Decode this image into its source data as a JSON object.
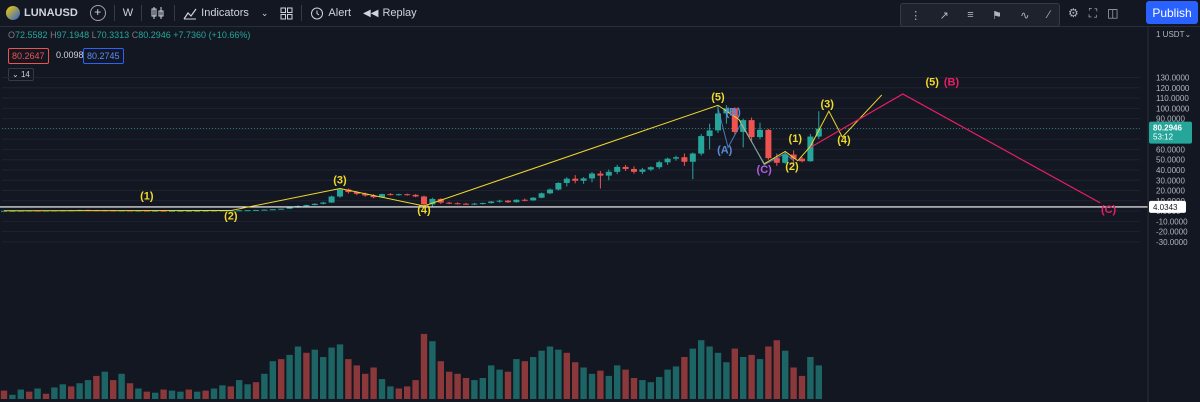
{
  "header": {
    "symbol": "LUNAUSD",
    "timeframe": "W",
    "indicators_label": "Indicators",
    "alert_label": "Alert",
    "replay_label": "Replay",
    "publish_label": "Publish"
  },
  "legend": {
    "o_key": "O",
    "o_val": "72.5582",
    "h_key": "H",
    "h_val": "97.1948",
    "l_key": "L",
    "l_val": "70.3313",
    "c_key": "C",
    "c_val": "80.2946",
    "change": "+7.7360 (+10.66%)",
    "bid": "80.2647",
    "spread": "0.0098",
    "ask": "80.2745",
    "collapse_count": "14"
  },
  "price_axis": {
    "currency": "USDT",
    "ticks": [
      "130.0000",
      "120.0000",
      "110.0000",
      "100.0000",
      "90.0000",
      "80.0000",
      "70.0000",
      "60.0000",
      "50.0000",
      "40.0000",
      "30.0000",
      "20.0000",
      "10.0000",
      "0.0000",
      "-10.0000",
      "-20.0000",
      "-30.0000"
    ],
    "last_price": "80.2946",
    "countdown": "53:12",
    "hline_price": "4.0343",
    "hline_value": 4.0343
  },
  "colors": {
    "up": "#26a69a",
    "down": "#ef5350",
    "wave": "#f0d92a",
    "corrective": "#e91e63",
    "abc_blue": "#5b8dd9",
    "abc_purple": "#b45be0"
  },
  "chart_data": {
    "type": "candlestick",
    "ylim": [
      -32,
      132
    ],
    "candles": [
      [
        0.2,
        0.3,
        0.1,
        0.3
      ],
      [
        0.3,
        0.4,
        0.2,
        0.3
      ],
      [
        0.3,
        0.4,
        0.2,
        0.4
      ],
      [
        0.4,
        0.5,
        0.3,
        0.5
      ],
      [
        0.5,
        0.6,
        0.3,
        0.4
      ],
      [
        0.4,
        0.5,
        0.3,
        0.5
      ],
      [
        0.5,
        0.6,
        0.4,
        0.6
      ],
      [
        0.6,
        0.8,
        0.5,
        0.7
      ],
      [
        0.7,
        0.9,
        0.6,
        0.8
      ],
      [
        0.8,
        1.2,
        0.7,
        1.1
      ],
      [
        1.1,
        1.3,
        0.8,
        0.9
      ],
      [
        0.9,
        1.1,
        0.7,
        0.8
      ],
      [
        0.8,
        0.9,
        0.6,
        0.7
      ],
      [
        0.7,
        0.8,
        0.5,
        0.6
      ],
      [
        0.6,
        0.7,
        0.5,
        0.6
      ],
      [
        0.6,
        0.7,
        0.4,
        0.5
      ],
      [
        0.5,
        0.6,
        0.4,
        0.5
      ],
      [
        0.5,
        0.5,
        0.3,
        0.4
      ],
      [
        0.4,
        0.5,
        0.3,
        0.4
      ],
      [
        0.4,
        0.4,
        0.3,
        0.3
      ],
      [
        0.3,
        0.4,
        0.2,
        0.3
      ],
      [
        0.3,
        0.4,
        0.2,
        0.3
      ],
      [
        0.3,
        0.4,
        0.2,
        0.3
      ],
      [
        0.3,
        0.4,
        0.2,
        0.35
      ],
      [
        0.35,
        0.5,
        0.3,
        0.45
      ],
      [
        0.45,
        0.6,
        0.4,
        0.55
      ],
      [
        0.55,
        0.7,
        0.5,
        0.6
      ],
      [
        0.6,
        0.8,
        0.5,
        0.7
      ],
      [
        0.7,
        0.9,
        0.6,
        0.8
      ],
      [
        0.8,
        1.0,
        0.7,
        0.9
      ],
      [
        0.9,
        1.2,
        0.8,
        1.1
      ],
      [
        1.1,
        1.5,
        1.0,
        1.4
      ],
      [
        1.4,
        1.9,
        1.2,
        1.8
      ],
      [
        1.8,
        2.5,
        1.6,
        2.3
      ],
      [
        2.3,
        4.0,
        2.1,
        3.5
      ],
      [
        3.5,
        5.5,
        3.1,
        4.8
      ],
      [
        4.8,
        6.2,
        4.4,
        5.9
      ],
      [
        5.9,
        7.6,
        5.5,
        7.1
      ],
      [
        7.1,
        9.0,
        6.5,
        8.3
      ],
      [
        8.3,
        15.0,
        8.0,
        14.2
      ],
      [
        14.2,
        22.5,
        13.0,
        21.0
      ],
      [
        21.0,
        22.0,
        17.0,
        18.5
      ],
      [
        18.5,
        19.5,
        15.5,
        16.8
      ],
      [
        16.8,
        18.0,
        14.0,
        15.2
      ],
      [
        15.2,
        16.5,
        12.5,
        13.5
      ],
      [
        13.5,
        17.0,
        12.8,
        16.5
      ],
      [
        16.5,
        17.5,
        15.2,
        16.0
      ],
      [
        16.0,
        17.0,
        15.0,
        16.4
      ],
      [
        16.4,
        17.0,
        15.0,
        15.8
      ],
      [
        15.8,
        16.5,
        13.5,
        14.2
      ],
      [
        14.2,
        15.0,
        5.0,
        6.5
      ],
      [
        6.5,
        13.0,
        4.5,
        11.8
      ],
      [
        11.8,
        12.5,
        7.0,
        8.2
      ],
      [
        8.2,
        9.0,
        6.8,
        7.6
      ],
      [
        7.6,
        8.5,
        6.5,
        7.2
      ],
      [
        7.2,
        8.0,
        6.0,
        6.6
      ],
      [
        6.6,
        8.0,
        6.0,
        7.3
      ],
      [
        7.3,
        8.3,
        6.5,
        7.8
      ],
      [
        7.8,
        9.8,
        7.2,
        9.3
      ],
      [
        9.3,
        11.0,
        8.3,
        10.1
      ],
      [
        10.1,
        10.8,
        8.0,
        8.6
      ],
      [
        8.6,
        11.5,
        8.2,
        11.0
      ],
      [
        11.0,
        12.2,
        9.5,
        10.4
      ],
      [
        10.4,
        13.6,
        10.0,
        13.0
      ],
      [
        13.0,
        18.0,
        12.5,
        17.3
      ],
      [
        17.3,
        22.0,
        16.5,
        21.0
      ],
      [
        21.0,
        28.0,
        20.0,
        27.4
      ],
      [
        27.4,
        33.0,
        24.0,
        31.5
      ],
      [
        31.5,
        35.0,
        27.0,
        29.5
      ],
      [
        29.5,
        33.0,
        26.5,
        31.8
      ],
      [
        31.8,
        38.0,
        28.0,
        36.5
      ],
      [
        36.5,
        39.0,
        22.0,
        34.5
      ],
      [
        34.5,
        40.5,
        30.0,
        38.2
      ],
      [
        38.2,
        45.0,
        36.0,
        43.0
      ],
      [
        43.0,
        45.0,
        39.0,
        41.0
      ],
      [
        41.0,
        43.5,
        36.5,
        38.2
      ],
      [
        38.2,
        42.0,
        36.0,
        40.5
      ],
      [
        40.5,
        43.5,
        39.0,
        42.7
      ],
      [
        42.7,
        49.0,
        41.0,
        47.5
      ],
      [
        47.5,
        52.0,
        45.0,
        51.0
      ],
      [
        51.0,
        54.0,
        49.0,
        52.4
      ],
      [
        52.4,
        56.0,
        44.0,
        48.0
      ],
      [
        48.0,
        57.0,
        31.0,
        56.0
      ],
      [
        56.0,
        75.0,
        54.0,
        73.0
      ],
      [
        73.0,
        85.0,
        60.0,
        78.5
      ],
      [
        78.5,
        103.0,
        76.0,
        95.0
      ],
      [
        95.0,
        103.0,
        85.0,
        100.0
      ],
      [
        100.0,
        101.0,
        75.0,
        77.0
      ],
      [
        77.0,
        90.0,
        62.0,
        88.5
      ],
      [
        88.5,
        91.0,
        67.0,
        72.0
      ],
      [
        72.0,
        86.0,
        70.0,
        79.0
      ],
      [
        79.0,
        80.0,
        50.0,
        51.5
      ],
      [
        51.5,
        56.0,
        44.0,
        47.0
      ],
      [
        47.0,
        58.5,
        46.0,
        55.0
      ],
      [
        55.0,
        59.0,
        47.0,
        51.0
      ],
      [
        51.0,
        52.5,
        47.5,
        48.5
      ],
      [
        48.5,
        75.0,
        48.0,
        72.5
      ],
      [
        72.5,
        97.2,
        70.3,
        80.3
      ]
    ],
    "volumes": [
      [
        8,
        "d"
      ],
      [
        4,
        "u"
      ],
      [
        9,
        "u"
      ],
      [
        7,
        "d"
      ],
      [
        10,
        "u"
      ],
      [
        5,
        "d"
      ],
      [
        11,
        "u"
      ],
      [
        14,
        "u"
      ],
      [
        12,
        "d"
      ],
      [
        15,
        "u"
      ],
      [
        18,
        "u"
      ],
      [
        22,
        "d"
      ],
      [
        26,
        "u"
      ],
      [
        18,
        "d"
      ],
      [
        24,
        "u"
      ],
      [
        15,
        "d"
      ],
      [
        10,
        "u"
      ],
      [
        7,
        "d"
      ],
      [
        6,
        "u"
      ],
      [
        9,
        "d"
      ],
      [
        8,
        "u"
      ],
      [
        7,
        "u"
      ],
      [
        9,
        "d"
      ],
      [
        7,
        "u"
      ],
      [
        8,
        "d"
      ],
      [
        10,
        "u"
      ],
      [
        13,
        "u"
      ],
      [
        12,
        "d"
      ],
      [
        18,
        "u"
      ],
      [
        14,
        "u"
      ],
      [
        16,
        "d"
      ],
      [
        24,
        "u"
      ],
      [
        36,
        "u"
      ],
      [
        38,
        "d"
      ],
      [
        42,
        "u"
      ],
      [
        50,
        "u"
      ],
      [
        44,
        "d"
      ],
      [
        47,
        "u"
      ],
      [
        40,
        "u"
      ],
      [
        49,
        "u"
      ],
      [
        52,
        "u"
      ],
      [
        38,
        "d"
      ],
      [
        32,
        "d"
      ],
      [
        24,
        "d"
      ],
      [
        30,
        "d"
      ],
      [
        19,
        "u"
      ],
      [
        12,
        "u"
      ],
      [
        10,
        "d"
      ],
      [
        12,
        "d"
      ],
      [
        18,
        "d"
      ],
      [
        62,
        "d"
      ],
      [
        55,
        "u"
      ],
      [
        36,
        "d"
      ],
      [
        26,
        "d"
      ],
      [
        24,
        "d"
      ],
      [
        20,
        "d"
      ],
      [
        18,
        "u"
      ],
      [
        20,
        "u"
      ],
      [
        32,
        "u"
      ],
      [
        28,
        "u"
      ],
      [
        26,
        "d"
      ],
      [
        38,
        "u"
      ],
      [
        36,
        "d"
      ],
      [
        40,
        "u"
      ],
      [
        46,
        "u"
      ],
      [
        50,
        "u"
      ],
      [
        47,
        "u"
      ],
      [
        44,
        "d"
      ],
      [
        35,
        "d"
      ],
      [
        30,
        "u"
      ],
      [
        24,
        "u"
      ],
      [
        27,
        "d"
      ],
      [
        22,
        "u"
      ],
      [
        32,
        "u"
      ],
      [
        28,
        "d"
      ],
      [
        20,
        "d"
      ],
      [
        18,
        "u"
      ],
      [
        16,
        "u"
      ],
      [
        21,
        "u"
      ],
      [
        28,
        "u"
      ],
      [
        31,
        "u"
      ],
      [
        40,
        "d"
      ],
      [
        48,
        "u"
      ],
      [
        56,
        "u"
      ],
      [
        50,
        "u"
      ],
      [
        44,
        "u"
      ],
      [
        35,
        "u"
      ],
      [
        48,
        "d"
      ],
      [
        40,
        "u"
      ],
      [
        42,
        "d"
      ],
      [
        38,
        "u"
      ],
      [
        50,
        "d"
      ],
      [
        56,
        "d"
      ],
      [
        46,
        "u"
      ],
      [
        30,
        "d"
      ],
      [
        22,
        "d"
      ],
      [
        40,
        "u"
      ],
      [
        32,
        "u"
      ]
    ],
    "wave_labels": [
      {
        "text": "(1)",
        "x": 17,
        "y": 11.5,
        "color": "wave"
      },
      {
        "text": "(2)",
        "x": 27,
        "y": -8,
        "color": "wave"
      },
      {
        "text": "(3)",
        "x": 40,
        "y": 27,
        "color": "wave"
      },
      {
        "text": "(4)",
        "x": 50,
        "y": -2.5,
        "color": "wave"
      },
      {
        "text": "(5)",
        "x": 85,
        "y": 107.5,
        "color": "wave"
      },
      {
        "text": "(B)",
        "x": 86.8,
        "y": 93,
        "color": "abc_blue"
      },
      {
        "text": "(A)",
        "x": 85.8,
        "y": 56,
        "color": "abc_blue"
      },
      {
        "text": "(C)",
        "x": 90.5,
        "y": 37,
        "color": "abc_purple"
      },
      {
        "text": "(1)",
        "x": 94.2,
        "y": 67,
        "color": "wave"
      },
      {
        "text": "(2)",
        "x": 93.8,
        "y": 40,
        "color": "wave"
      },
      {
        "text": "(3)",
        "x": 98,
        "y": 101,
        "color": "wave"
      },
      {
        "text": "(4)",
        "x": 100,
        "y": 66,
        "color": "wave"
      },
      {
        "text": "(5)",
        "x": 110.5,
        "y": 122,
        "color": "wave"
      },
      {
        "text": "(B)",
        "x": 112.8,
        "y": 122,
        "color": "corrective"
      },
      {
        "text": "(C)",
        "x": 131.5,
        "y": -2,
        "color": "corrective"
      }
    ],
    "wave_line": [
      [
        0,
        0.3
      ],
      [
        27,
        0.5
      ],
      [
        40,
        22
      ],
      [
        50,
        5
      ],
      [
        85,
        103
      ],
      [
        87.5,
        89
      ],
      [
        90.5,
        46
      ],
      [
        93,
        58
      ],
      [
        94.5,
        49
      ],
      [
        96,
        63
      ],
      [
        98.2,
        97.2
      ],
      [
        99.8,
        72
      ],
      [
        104.5,
        113
      ]
    ],
    "corrective_line": [
      [
        96,
        62
      ],
      [
        107,
        114
      ],
      [
        130.5,
        8
      ]
    ],
    "corrective_zigzag": [
      [
        85,
        100
      ],
      [
        86.2,
        62
      ],
      [
        87.8,
        86
      ],
      [
        90.5,
        45
      ],
      [
        93,
        56
      ],
      [
        94,
        49
      ]
    ]
  }
}
